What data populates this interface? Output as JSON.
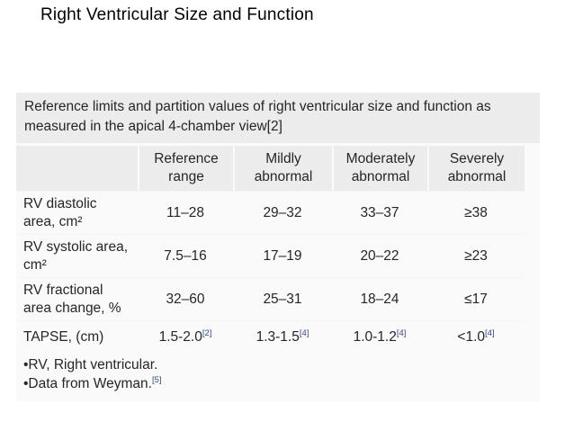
{
  "title": "Right Ventricular Size and Function",
  "table": {
    "caption": "Reference limits and partition values of right ventricular size and function as measured in the apical 4-chamber view[2]",
    "columns": [
      "Reference range",
      "Mildly abnormal",
      "Moderately abnormal",
      "Severely abnormal"
    ],
    "rows": [
      {
        "label": "RV diastolic area, cm²",
        "values": [
          {
            "v": "11–28",
            "ref": ""
          },
          {
            "v": "29–32",
            "ref": ""
          },
          {
            "v": "33–37",
            "ref": ""
          },
          {
            "v": "≥38",
            "ref": ""
          }
        ]
      },
      {
        "label": "RV systolic area, cm²",
        "values": [
          {
            "v": "7.5–16",
            "ref": ""
          },
          {
            "v": "17–19",
            "ref": ""
          },
          {
            "v": "20–22",
            "ref": ""
          },
          {
            "v": "≥23",
            "ref": ""
          }
        ]
      },
      {
        "label": "RV fractional area change, %",
        "values": [
          {
            "v": "32–60",
            "ref": ""
          },
          {
            "v": "25–31",
            "ref": ""
          },
          {
            "v": "18–24",
            "ref": ""
          },
          {
            "v": "≤17",
            "ref": ""
          }
        ]
      },
      {
        "label": "TAPSE, (cm)",
        "values": [
          {
            "v": "1.5-2.0",
            "ref": "[2]"
          },
          {
            "v": "1.3-1.5",
            "ref": "[4]"
          },
          {
            "v": "1.0-1.2",
            "ref": "[4]"
          },
          {
            "v": "<1.0",
            "ref": "[4]"
          }
        ]
      }
    ],
    "footnotes": [
      {
        "text": "•RV, Right ventricular.",
        "ref": ""
      },
      {
        "text": "•Data from Weyman.",
        "ref": "[5]"
      }
    ]
  },
  "colors": {
    "header_band_bg": "#ececec",
    "body_band_bg": "#fafafa",
    "text": "#262626",
    "title_text": "#000000",
    "reference_link": "#35477d"
  }
}
